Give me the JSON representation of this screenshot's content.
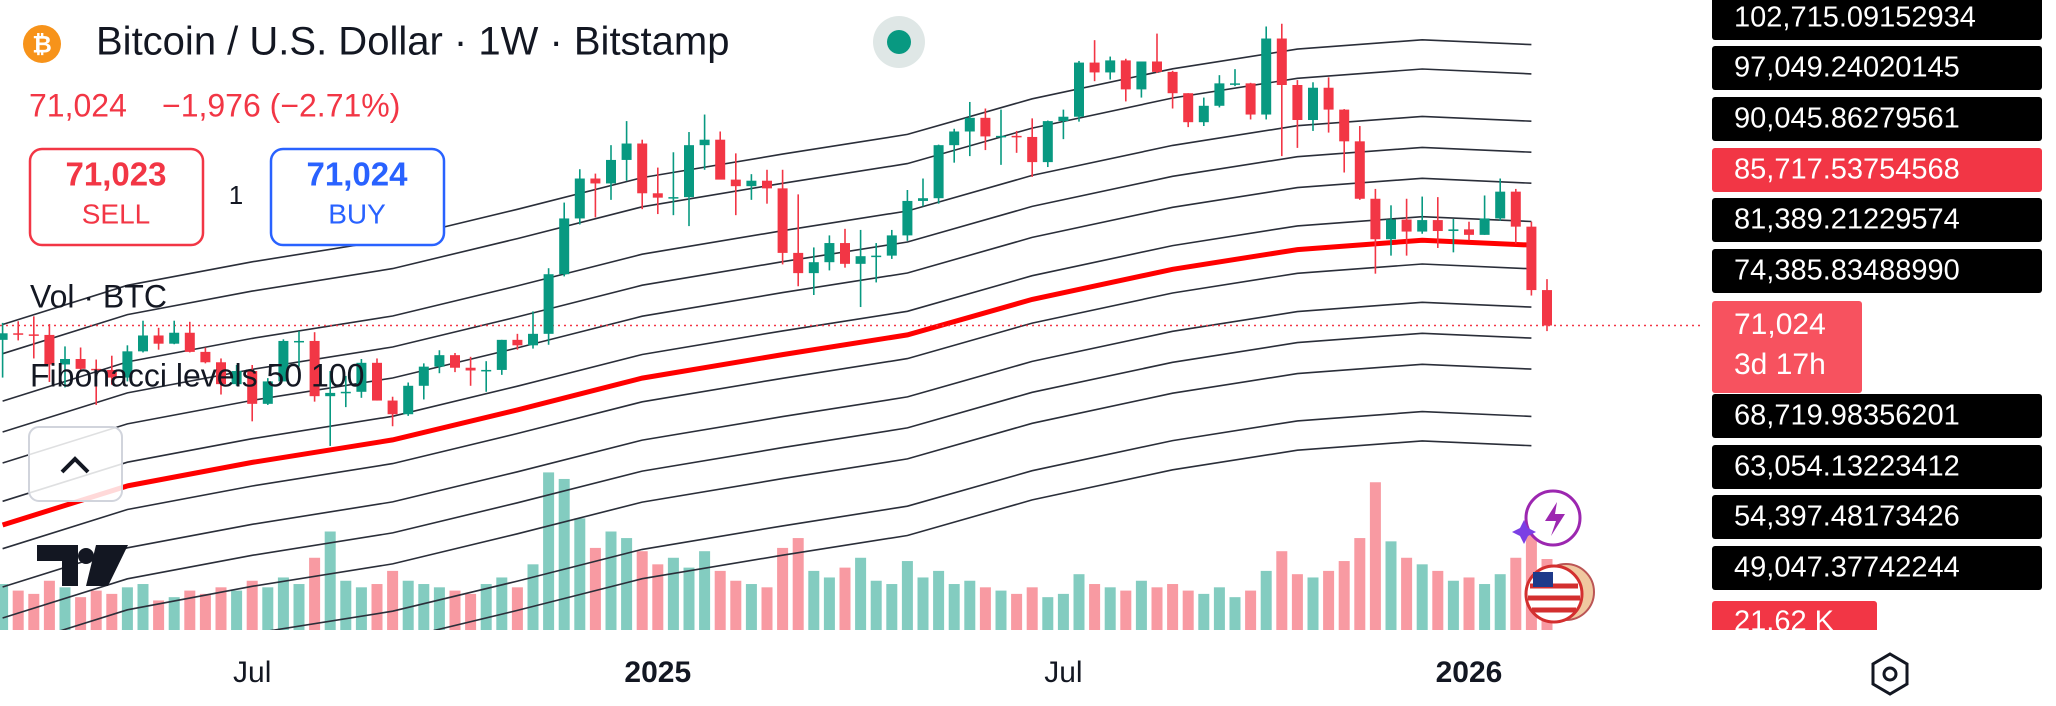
{
  "header": {
    "title": "Bitcoin / U.S. Dollar · 1W · Bitstamp",
    "price": "71,024",
    "change": "−1,976 (−2.71%)",
    "sell": {
      "price": "71,023",
      "label": "SELL"
    },
    "spread": "1",
    "buy": {
      "price": "71,024",
      "label": "BUY"
    },
    "volume_legend": "Vol · BTC",
    "indicator_legend": "Fibonacci levels 50 100"
  },
  "chart_data": {
    "type": "candlestick",
    "categories": [
      null,
      null,
      null,
      null,
      null,
      null,
      null,
      null,
      null,
      null,
      null,
      null,
      null,
      null,
      null,
      null,
      "Jul",
      null,
      null,
      null,
      null,
      null,
      null,
      null,
      null,
      null,
      null,
      null,
      null,
      null,
      null,
      null,
      null,
      null,
      null,
      null,
      null,
      null,
      null,
      null,
      null,
      null,
      "2025",
      null,
      null,
      null,
      null,
      null,
      null,
      null,
      null,
      null,
      null,
      null,
      null,
      null,
      null,
      null,
      null,
      null,
      null,
      null,
      null,
      null,
      null,
      null,
      null,
      null,
      "Jul",
      null,
      null,
      null,
      null,
      null,
      null,
      null,
      null,
      null,
      null,
      null,
      null,
      null,
      null,
      null,
      null,
      null,
      null,
      null,
      null,
      null,
      null,
      null,
      null,
      null,
      "2026",
      null,
      null,
      null,
      null,
      null
    ],
    "ohlc": [
      [
        68400,
        71500,
        61500,
        69600
      ],
      [
        69600,
        71800,
        68300,
        69400
      ],
      [
        69400,
        72700,
        65000,
        69300
      ],
      [
        69300,
        71300,
        60700,
        63900
      ],
      [
        63900,
        67200,
        59700,
        64900
      ],
      [
        64900,
        67000,
        62800,
        63100
      ],
      [
        63100,
        64800,
        56500,
        62900
      ],
      [
        62900,
        65500,
        60200,
        61500
      ],
      [
        61500,
        67400,
        60800,
        66300
      ],
      [
        66300,
        71900,
        66100,
        69200
      ],
      [
        69200,
        70600,
        66600,
        67700
      ],
      [
        67700,
        71900,
        67600,
        69700
      ],
      [
        69700,
        71700,
        66100,
        66200
      ],
      [
        66200,
        67000,
        64100,
        64300
      ],
      [
        64300,
        65000,
        58400,
        60300
      ],
      [
        60300,
        63800,
        60000,
        62700
      ],
      [
        62700,
        63800,
        53500,
        56700
      ],
      [
        56700,
        61400,
        56500,
        60800
      ],
      [
        60800,
        68500,
        61000,
        68200
      ],
      [
        68200,
        70000,
        63500,
        68200
      ],
      [
        68200,
        69800,
        57100,
        58100
      ],
      [
        58100,
        62700,
        49000,
        58700
      ],
      [
        58700,
        61800,
        56100,
        58900
      ],
      [
        58900,
        64900,
        57800,
        64200
      ],
      [
        64200,
        65000,
        57300,
        57300
      ],
      [
        57300,
        58000,
        52600,
        54800
      ],
      [
        54800,
        60600,
        54500,
        60000
      ],
      [
        60000,
        64100,
        57500,
        63500
      ],
      [
        63500,
        66500,
        62300,
        65600
      ],
      [
        65600,
        66000,
        62500,
        63300
      ],
      [
        63300,
        65300,
        60000,
        62800
      ],
      [
        62800,
        64500,
        58900,
        62900
      ],
      [
        62900,
        68400,
        62000,
        68400
      ],
      [
        68400,
        69500,
        66600,
        67400
      ],
      [
        67400,
        73600,
        66800,
        69500
      ],
      [
        69500,
        81500,
        67500,
        80400
      ],
      [
        80400,
        93500,
        80000,
        90600
      ],
      [
        90600,
        99600,
        89500,
        97900
      ],
      [
        97900,
        98800,
        90800,
        97000
      ],
      [
        97000,
        104000,
        94000,
        101300
      ],
      [
        101300,
        108400,
        97500,
        104300
      ],
      [
        104300,
        105000,
        92300,
        95200
      ],
      [
        95200,
        99900,
        91400,
        94400
      ],
      [
        94400,
        102700,
        91200,
        94500
      ],
      [
        94500,
        106400,
        89200,
        104000
      ],
      [
        104000,
        109600,
        99500,
        105000
      ],
      [
        105000,
        106500,
        97800,
        97700
      ],
      [
        97700,
        102500,
        91200,
        96500
      ],
      [
        96500,
        98700,
        94000,
        97500
      ],
      [
        97500,
        99500,
        93300,
        96100
      ],
      [
        96100,
        99500,
        82200,
        84300
      ],
      [
        84300,
        95000,
        78200,
        80600
      ],
      [
        80600,
        85300,
        76600,
        82600
      ],
      [
        82600,
        87500,
        81100,
        86100
      ],
      [
        86100,
        88700,
        81600,
        82300
      ],
      [
        82300,
        88500,
        74400,
        83700
      ],
      [
        83700,
        86100,
        78900,
        83800
      ],
      [
        83800,
        88500,
        83200,
        87500
      ],
      [
        87500,
        95800,
        86500,
        93800
      ],
      [
        93800,
        97900,
        92800,
        94300
      ],
      [
        94300,
        104100,
        93300,
        104000
      ],
      [
        104000,
        107000,
        100800,
        106500
      ],
      [
        106500,
        111900,
        102000,
        109000
      ],
      [
        109000,
        110700,
        103100,
        105600
      ],
      [
        105600,
        110500,
        100400,
        105700
      ],
      [
        105700,
        106600,
        102600,
        105500
      ],
      [
        105500,
        108900,
        98200,
        100900
      ],
      [
        100900,
        108500,
        100000,
        108400
      ],
      [
        108400,
        110500,
        105100,
        109200
      ],
      [
        109200,
        119400,
        108300,
        119100
      ],
      [
        119100,
        123200,
        115700,
        117300
      ],
      [
        117300,
        120200,
        116000,
        119500
      ],
      [
        119500,
        119800,
        112000,
        114200
      ],
      [
        114200,
        119300,
        112700,
        119300
      ],
      [
        119300,
        124400,
        117200,
        117400
      ],
      [
        117400,
        117600,
        110700,
        113500
      ],
      [
        113500,
        113500,
        107300,
        108200
      ],
      [
        108200,
        112700,
        107500,
        111200
      ],
      [
        111200,
        116800,
        110900,
        115300
      ],
      [
        115300,
        117900,
        114800,
        115300
      ],
      [
        115300,
        115400,
        108700,
        109600
      ],
      [
        109600,
        125700,
        108700,
        123500
      ],
      [
        123500,
        126200,
        102000,
        115000
      ],
      [
        115000,
        115900,
        103500,
        108600
      ],
      [
        108600,
        115500,
        106600,
        114500
      ],
      [
        114500,
        116400,
        106300,
        110500
      ],
      [
        110500,
        110600,
        99000,
        104700
      ],
      [
        104700,
        107500,
        94000,
        94200
      ],
      [
        94200,
        96000,
        80500,
        86800
      ],
      [
        86800,
        93000,
        83800,
        90400
      ],
      [
        90400,
        94200,
        83800,
        88200
      ],
      [
        88200,
        94600,
        87800,
        90300
      ],
      [
        90300,
        94500,
        85200,
        88300
      ],
      [
        88300,
        90500,
        84400,
        88600
      ],
      [
        88600,
        90000,
        86600,
        87600
      ],
      [
        87600,
        94800,
        87600,
        90600
      ],
      [
        90600,
        97900,
        90200,
        95500
      ],
      [
        95500,
        96000,
        86000,
        89100
      ],
      [
        89100,
        90000,
        76500,
        77500
      ],
      [
        77500,
        79500,
        70000,
        71024
      ]
    ],
    "volume": [
      14000,
      12000,
      11000,
      15000,
      13000,
      10000,
      12000,
      11000,
      13000,
      14000,
      9000,
      10000,
      12000,
      11000,
      13000,
      12000,
      15000,
      13000,
      16000,
      14000,
      22000,
      30000,
      15000,
      13000,
      14000,
      18000,
      15000,
      14000,
      13000,
      12000,
      11000,
      14000,
      16000,
      13000,
      20000,
      48000,
      46000,
      34000,
      25000,
      30000,
      28000,
      24000,
      20000,
      22000,
      19000,
      24000,
      18000,
      15000,
      14000,
      13000,
      25000,
      28000,
      18000,
      16000,
      19000,
      22000,
      15000,
      14000,
      21000,
      16000,
      18000,
      14000,
      15000,
      13000,
      12000,
      11000,
      13000,
      10000,
      11000,
      17000,
      14000,
      13000,
      12000,
      15000,
      13000,
      14000,
      12000,
      11000,
      13000,
      10000,
      12000,
      18000,
      24000,
      17000,
      16000,
      18000,
      21000,
      28000,
      45000,
      27000,
      22000,
      20000,
      18000,
      15000,
      16000,
      14000,
      17000,
      22000,
      30000,
      21620
    ],
    "ylim": [
      15344,
      130544
    ],
    "vlim": [
      0,
      60000
    ],
    "up_color": "#089981",
    "down_color": "#f23645",
    "band_x": [
      0,
      8,
      16,
      25,
      33,
      41,
      50,
      58,
      66,
      75,
      83,
      91,
      98
    ],
    "ma": {
      "color": "#ff0000",
      "values": [
        34544,
        41700,
        46000,
        50100,
        55600,
        61400,
        65700,
        69300,
        75800,
        81300,
        84900,
        86600,
        85717.53754568
      ],
      "label": "85,717.53754568"
    },
    "band_color": "#2a2e39",
    "bands": [
      {
        "values": [
          71214,
          78370,
          82670,
          86770,
          92270,
          98070,
          102370,
          105970,
          112470,
          117970,
          121570,
          123270,
          122388
        ]
      },
      {
        "values": [
          65864,
          73020,
          77320,
          81420,
          86920,
          92720,
          97020,
          100620,
          107120,
          112620,
          116220,
          117920,
          117038
        ]
      },
      {
        "values": [
          57207,
          64363,
          68663,
          72763,
          78263,
          84063,
          88363,
          91963,
          98463,
          103963,
          107563,
          109263,
          108381
        ]
      },
      {
        "values": [
          51542,
          58698,
          62998,
          67098,
          72598,
          78398,
          82698,
          86298,
          92798,
          98298,
          101898,
          103598,
          102715.09152934
        ],
        "label": "102,715.09152934"
      },
      {
        "values": [
          45876,
          53032,
          57332,
          61432,
          66932,
          72732,
          77032,
          80632,
          87132,
          92632,
          96232,
          97932,
          97049.24020145
        ],
        "label": "97,049.24020145"
      },
      {
        "values": [
          38872,
          46028,
          50328,
          54428,
          59928,
          65728,
          70028,
          73628,
          80128,
          85628,
          89228,
          90928,
          90045.86279561
        ],
        "label": "90,045.86279561"
      },
      {
        "values": [
          30216,
          37372,
          41672,
          45772,
          51272,
          57072,
          61372,
          64972,
          71472,
          76972,
          80572,
          82272,
          81389.21229574
        ],
        "label": "81,389.21229574"
      },
      {
        "values": [
          23212,
          30368,
          34668,
          38768,
          44268,
          50068,
          54368,
          57968,
          64468,
          69968,
          73568,
          75268,
          74385.8348899
        ],
        "label": "74,385.83488990"
      },
      {
        "values": [
          17546,
          24702,
          29002,
          33102,
          38602,
          44402,
          48702,
          52302,
          58802,
          64302,
          67902,
          69602,
          68719.98356201
        ],
        "label": "68,719.98356201"
      },
      {
        "values": [
          11881,
          19037,
          23337,
          27437,
          32937,
          38737,
          43037,
          46637,
          53137,
          58637,
          62237,
          63937,
          63054.13223412
        ],
        "label": "63,054.13223412"
      },
      {
        "values": [
          3224,
          10380,
          14680,
          18780,
          24280,
          30080,
          34380,
          37980,
          44480,
          49980,
          53580,
          55280,
          54397.48173426
        ],
        "label": "54,397.48173426"
      },
      {
        "values": [
          -2126,
          5030,
          9330,
          13430,
          18930,
          24730,
          29030,
          32630,
          39130,
          44630,
          48230,
          49930,
          49047.37742244
        ],
        "label": "49,047.37742244"
      }
    ],
    "last_price": {
      "value": 71024,
      "label": "71,024",
      "countdown": "3d 17h"
    },
    "last_volume": {
      "value": 21620,
      "label": "21.62 K"
    }
  }
}
